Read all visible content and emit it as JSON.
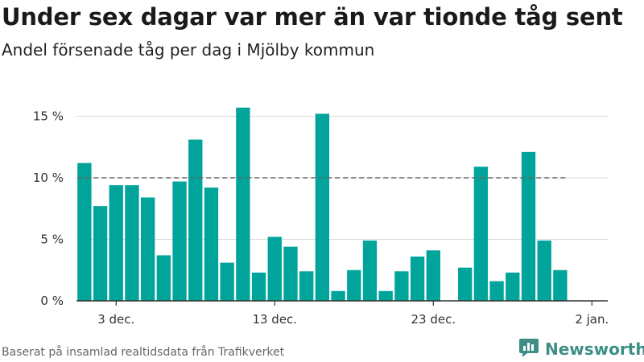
{
  "title": "Under sex dagar var mer än var tionde tåg sent",
  "subtitle": "Andel försenade tåg per dag i Mjölby kommun",
  "footer": "Baserat på insamlad realtidsdata från Trafikverket",
  "brand": {
    "name": "Newsworthy",
    "icon": "newsworthy-logo-icon",
    "color": "#3d8f86"
  },
  "chart_data": {
    "type": "bar",
    "title": "Under sex dagar var mer än var tionde tåg sent",
    "subtitle": "Andel försenade tåg per dag i Mjölby kommun",
    "categories": [
      "2020-12-01",
      "2020-12-02",
      "2020-12-03",
      "2020-12-04",
      "2020-12-05",
      "2020-12-06",
      "2020-12-07",
      "2020-12-08",
      "2020-12-09",
      "2020-12-10",
      "2020-12-11",
      "2020-12-12",
      "2020-12-13",
      "2020-12-14",
      "2020-12-15",
      "2020-12-16",
      "2020-12-17",
      "2020-12-18",
      "2020-12-19",
      "2020-12-20",
      "2020-12-21",
      "2020-12-22",
      "2020-12-23",
      "2020-12-24",
      "2020-12-25",
      "2020-12-26",
      "2020-12-27",
      "2020-12-28",
      "2020-12-29",
      "2020-12-30",
      "2020-12-31"
    ],
    "values": [
      11.2,
      7.7,
      9.4,
      9.4,
      8.4,
      3.7,
      9.7,
      13.1,
      9.2,
      3.1,
      15.7,
      2.3,
      5.2,
      4.4,
      2.4,
      15.2,
      0.8,
      2.5,
      4.9,
      0.8,
      2.4,
      3.6,
      4.1,
      0,
      2.7,
      10.9,
      1.6,
      2.3,
      12.1,
      4.9,
      2.5
    ],
    "reference_line": {
      "value": 10,
      "style": "dashed"
    },
    "ylim": [
      0,
      16.6
    ],
    "y_ticks": [
      0,
      5,
      10,
      15
    ],
    "y_tick_labels": [
      "0 %",
      "5 %",
      "10 %",
      "15 %"
    ],
    "x_ticks": [
      "2020-12-03",
      "2020-12-13",
      "2020-12-23",
      "2021-01-02"
    ],
    "x_tick_labels": [
      "3 dec.",
      "13 dec.",
      "23 dec.",
      "2 jan."
    ],
    "xlabel": "",
    "ylabel": "",
    "grid": true,
    "colors": {
      "bar": "#00a49a",
      "grid": "#d9d9d9",
      "reference": "#666666",
      "axis": "#333333"
    }
  }
}
